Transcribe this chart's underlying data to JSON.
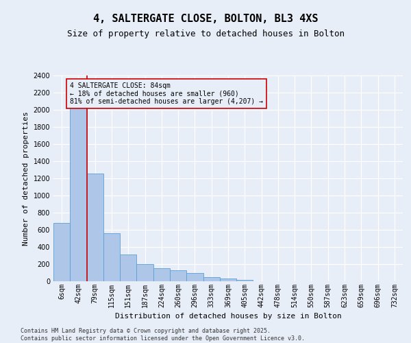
{
  "title": "4, SALTERGATE CLOSE, BOLTON, BL3 4XS",
  "subtitle": "Size of property relative to detached houses in Bolton",
  "xlabel": "Distribution of detached houses by size in Bolton",
  "ylabel": "Number of detached properties",
  "bar_color": "#aec6e8",
  "bar_edge_color": "#5a9fd4",
  "bg_color": "#e8eef8",
  "grid_color": "#ffffff",
  "categories": [
    "6sqm",
    "42sqm",
    "79sqm",
    "115sqm",
    "151sqm",
    "187sqm",
    "224sqm",
    "260sqm",
    "296sqm",
    "333sqm",
    "369sqm",
    "405sqm",
    "442sqm",
    "478sqm",
    "514sqm",
    "550sqm",
    "587sqm",
    "623sqm",
    "659sqm",
    "696sqm",
    "732sqm"
  ],
  "values": [
    680,
    2060,
    1260,
    560,
    310,
    200,
    150,
    130,
    100,
    50,
    30,
    20,
    0,
    0,
    0,
    0,
    0,
    0,
    0,
    0,
    0
  ],
  "ylim": [
    0,
    2400
  ],
  "yticks": [
    0,
    200,
    400,
    600,
    800,
    1000,
    1200,
    1400,
    1600,
    1800,
    2000,
    2200,
    2400
  ],
  "property_index": 2,
  "annotation_text": "4 SALTERGATE CLOSE: 84sqm\n← 18% of detached houses are smaller (960)\n81% of semi-detached houses are larger (4,207) →",
  "annotation_box_color": "#cc0000",
  "red_line_color": "#cc0000",
  "footnote": "Contains HM Land Registry data © Crown copyright and database right 2025.\nContains public sector information licensed under the Open Government Licence v3.0.",
  "title_fontsize": 11,
  "subtitle_fontsize": 9,
  "label_fontsize": 8,
  "tick_fontsize": 7,
  "annotation_fontsize": 7,
  "footnote_fontsize": 6
}
